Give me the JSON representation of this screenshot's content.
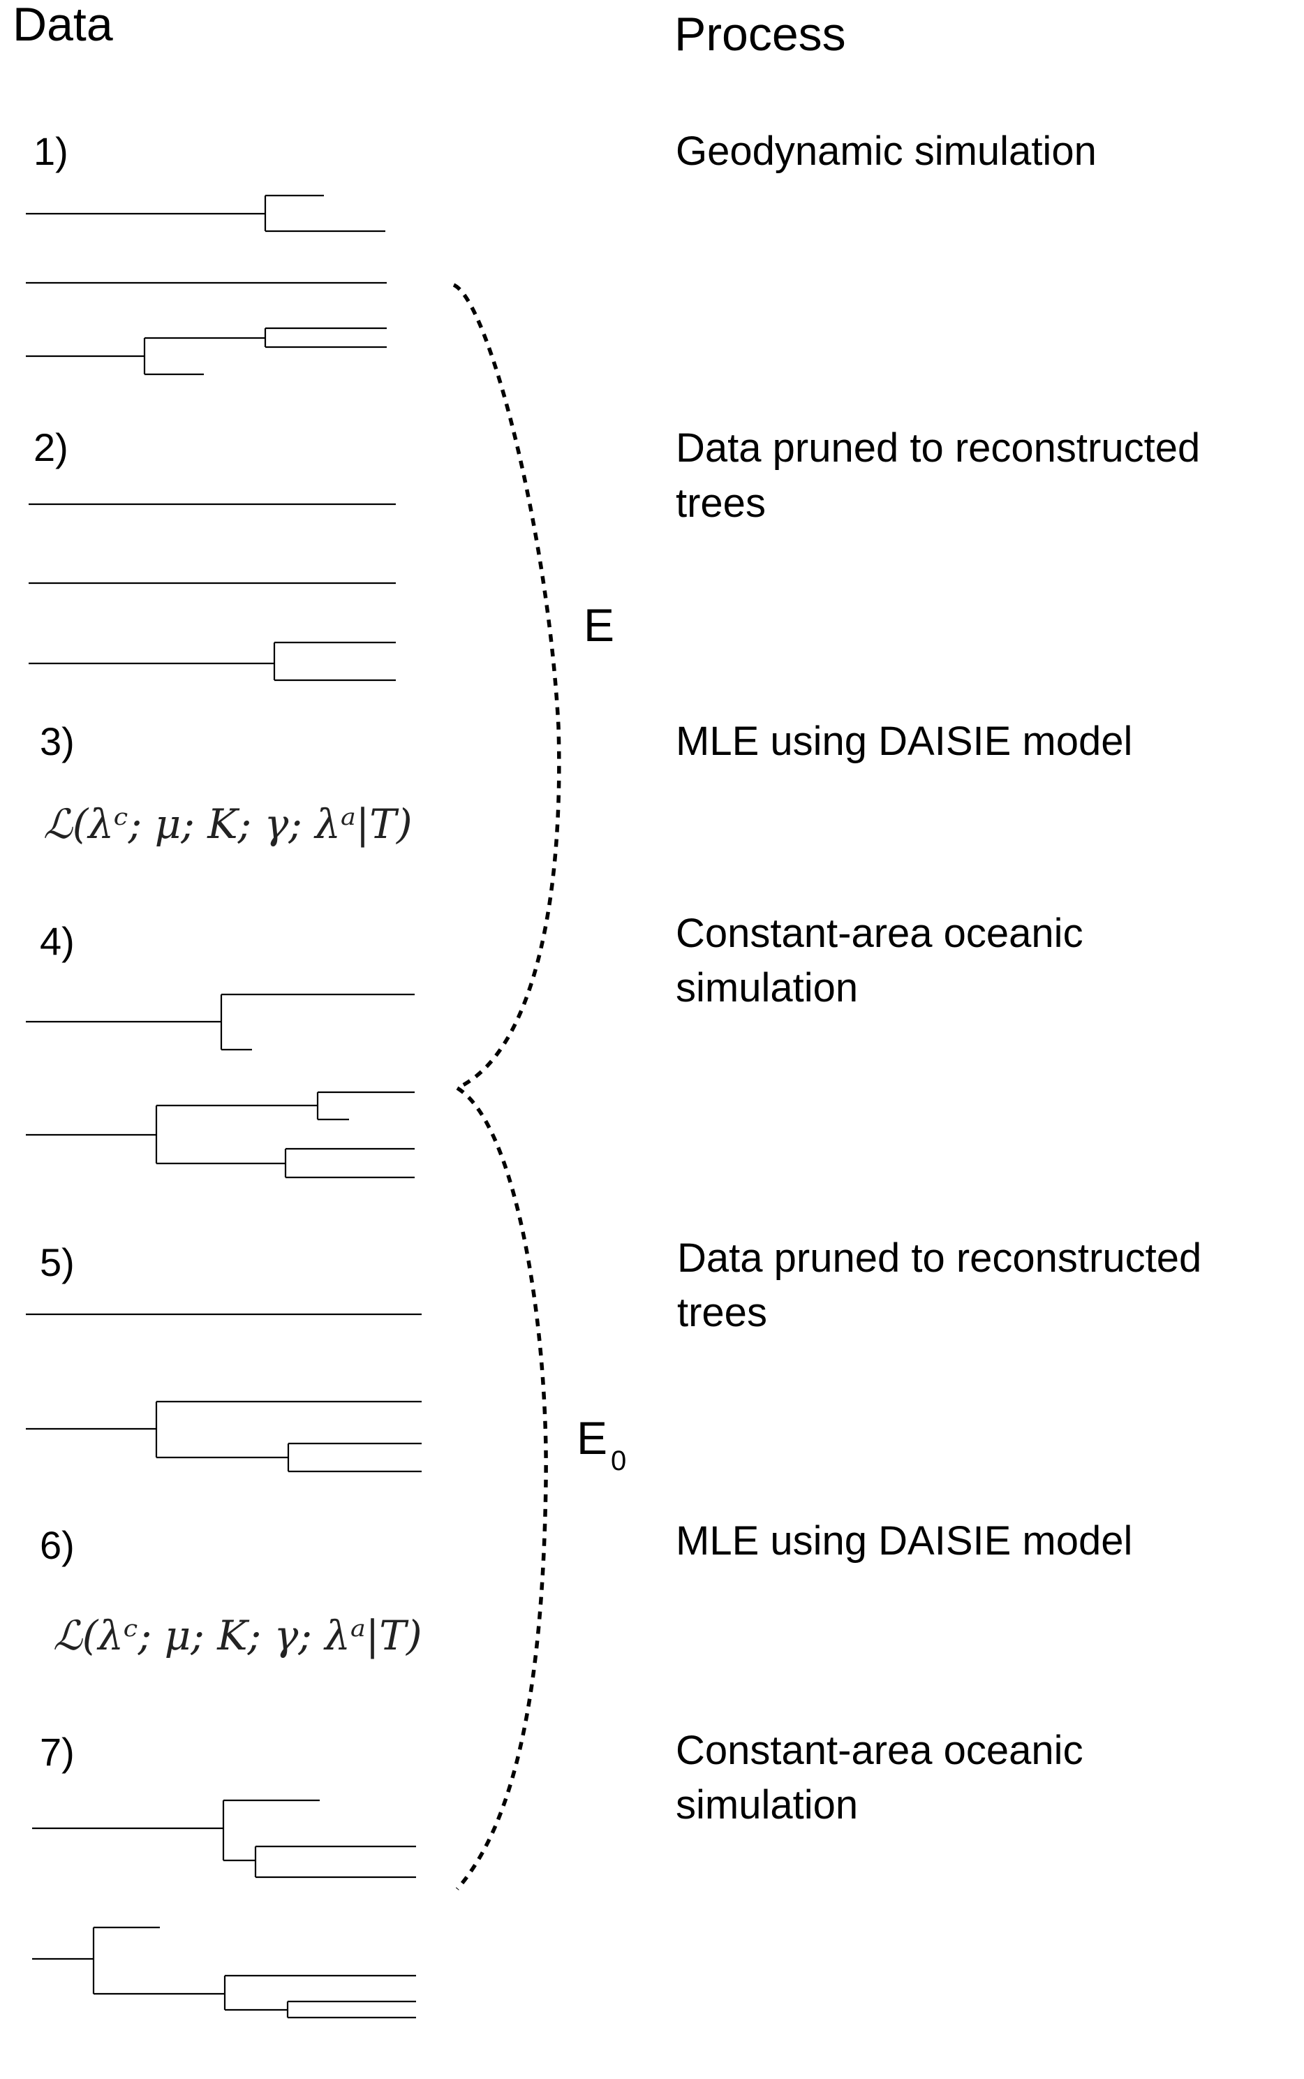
{
  "headers": {
    "data": "Data",
    "process": "Process"
  },
  "steps": [
    {
      "number": "1)",
      "process": [
        "Geodynamic simulation"
      ]
    },
    {
      "number": "2)",
      "process": [
        "Data pruned to reconstructed",
        "trees"
      ]
    },
    {
      "number": "3)",
      "process": [
        "MLE using DAISIE model"
      ],
      "formula": "ℒ(λᶜ; μ; K; γ; λᵃ|T)"
    },
    {
      "number": "4)",
      "process": [
        "Constant-area oceanic",
        "simulation"
      ]
    },
    {
      "number": "5)",
      "process": [
        "Data pruned to reconstructed",
        "trees"
      ]
    },
    {
      "number": "6)",
      "process": [
        "MLE using DAISIE model"
      ],
      "formula": "ℒ(λᶜ; μ; K; γ; λᵃ|T)"
    },
    {
      "number": "7)",
      "process": [
        "Constant-area oceanic",
        "simulation"
      ]
    }
  ],
  "braces": [
    {
      "label": "E",
      "subscript": ""
    },
    {
      "label": "E",
      "subscript": "0"
    }
  ]
}
